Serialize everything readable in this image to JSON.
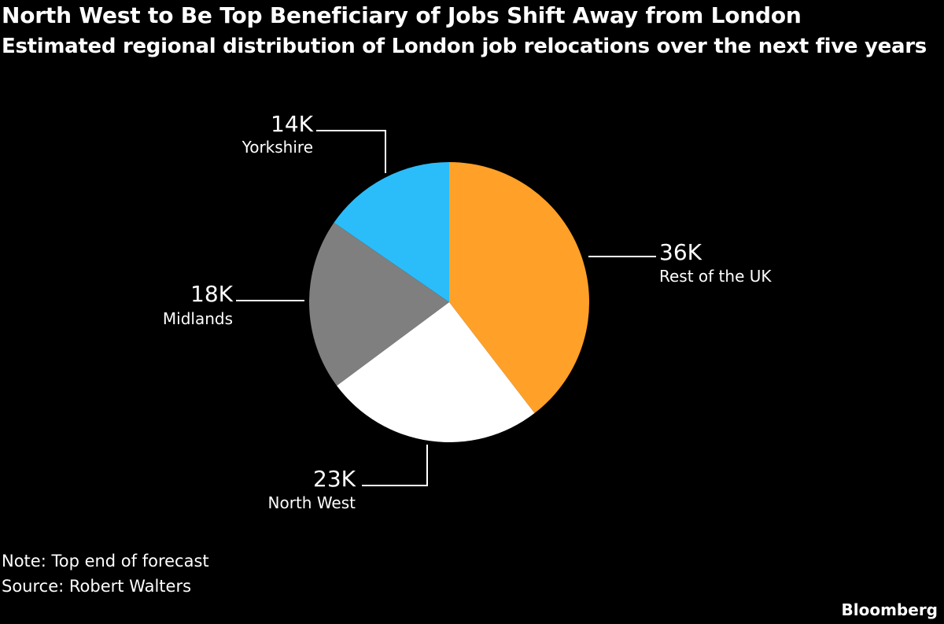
{
  "title": "North West to Be Top Beneficiary of Jobs Shift Away from London",
  "subtitle": "Estimated regional distribution of London job relocations over the next five years",
  "note": "Note: Top end of forecast",
  "source": "Source: Robert Walters",
  "brand": "Bloomberg",
  "chart_data": {
    "type": "pie",
    "slices": [
      {
        "name": "Rest of the UK",
        "value": 36,
        "label": "36K",
        "color": "#FFA028"
      },
      {
        "name": "North West",
        "value": 23,
        "label": "23K",
        "color": "#FFFFFF"
      },
      {
        "name": "Midlands",
        "value": 18,
        "label": "18K",
        "color": "#7F7F7F"
      },
      {
        "name": "Yorkshire",
        "value": 14,
        "label": "14K",
        "color": "#2BBDF9"
      }
    ],
    "start": "12 o'clock",
    "direction": "clockwise",
    "legend": "none",
    "unit": "K"
  }
}
